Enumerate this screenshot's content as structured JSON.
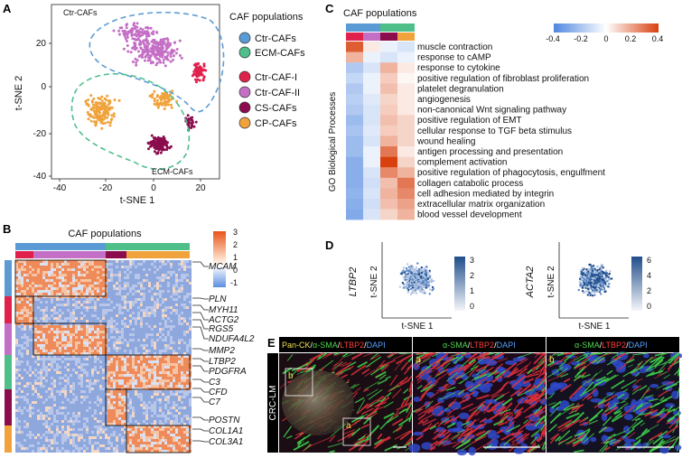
{
  "panels": {
    "a": {
      "label": "A",
      "annot_top": "Ctr-CAFs",
      "annot_bottom": "ECM-CAFs",
      "xlabel": "t-SNE 1",
      "ylabel": "t-SNE 2",
      "xticks": [
        "-40",
        "-20",
        "0",
        "20"
      ],
      "yticks": [
        "20",
        "0",
        "-20",
        "-40"
      ],
      "legend_title": "CAF populations",
      "legend": [
        {
          "label": "Ctr-CAFs",
          "color": "#5b9bd5"
        },
        {
          "label": "ECM-CAFs",
          "color": "#4fbf8a"
        },
        {
          "label": "Ctr-CAF-I",
          "color": "#e0214b"
        },
        {
          "label": "Ctr-CAF-II",
          "color": "#c46fc6"
        },
        {
          "label": "CS-CAFs",
          "color": "#8b0d4d"
        },
        {
          "label": "CP-CAFs",
          "color": "#f0a33c"
        }
      ]
    },
    "b": {
      "label": "B",
      "title": "CAF populations",
      "colorbar_ticks": [
        "3",
        "2",
        "1",
        "0",
        "-1"
      ],
      "genes": [
        "MCAM",
        "PLN",
        "MYH11",
        "ACTG2",
        "RGS5",
        "NDUFA4L2",
        "MMP2",
        "LTBP2",
        "PDGFRA",
        "C3",
        "CFD",
        "C7",
        "POSTN",
        "COL1A1",
        "COL3A1"
      ]
    },
    "c": {
      "label": "C",
      "title": "CAF populations",
      "ylabel": "GO Biological Processes",
      "colorbar_ticks": [
        "-0.4",
        "-0.2",
        "0",
        "0.2",
        "0.4"
      ],
      "terms": [
        "muscle contraction",
        "response to cAMP",
        "response to cytokine",
        "positive regulation of fibroblast proliferation",
        "platelet degranulation",
        "angiogenesis",
        "non-canonical Wnt signaling pathway",
        "positive regulation of EMT",
        "cellular response to TGF beta stimulus",
        "wound healing",
        "antigen processing and presentation",
        "complement activation",
        "positive regulation of phagocytosis, engulfment",
        "collagen catabolic process",
        "cell adhesion mediated by integrin",
        "extracellular matrix organization",
        "blood vessel development"
      ],
      "columns": [
        "Ctr-CAF-I",
        "Ctr-CAF-II",
        "CS-CAFs",
        "CP-CAFs"
      ]
    },
    "d": {
      "label": "D",
      "plots": [
        {
          "gene": "LTBP2",
          "xlabel": "t-SNE 1",
          "ylabel": "t-SNE 2",
          "colorbar_ticks": [
            "3",
            "2",
            "1",
            "0"
          ]
        },
        {
          "gene": "ACTA2",
          "xlabel": "t-SNE 1",
          "ylabel": "t-SNE 2",
          "colorbar_ticks": [
            "6",
            "4",
            "2",
            "0"
          ]
        }
      ]
    },
    "e": {
      "label": "E",
      "side_label": "CRC-LM",
      "inset_a": "a",
      "inset_b": "b",
      "headers": [
        [
          {
            "text": "Pan-CK",
            "color": "#f2e14c"
          },
          {
            "text": "/",
            "color": "#ffffff"
          },
          {
            "text": "α-SMA",
            "color": "#4fd64f"
          },
          {
            "text": "/",
            "color": "#ffffff"
          },
          {
            "text": "LTBP2",
            "color": "#ff3b3b"
          },
          {
            "text": "/",
            "color": "#ffffff"
          },
          {
            "text": "DAPI",
            "color": "#5aa0ff"
          }
        ],
        [
          {
            "text": "α-SMA",
            "color": "#4fd64f"
          },
          {
            "text": "/",
            "color": "#ffffff"
          },
          {
            "text": "LTBP2",
            "color": "#ff3b3b"
          },
          {
            "text": "/",
            "color": "#ffffff"
          },
          {
            "text": "DAPI",
            "color": "#5aa0ff"
          }
        ],
        [
          {
            "text": "α-SMA",
            "color": "#4fd64f"
          },
          {
            "text": "/",
            "color": "#ffffff"
          },
          {
            "text": "LTBP2",
            "color": "#ff3b3b"
          },
          {
            "text": "/",
            "color": "#ffffff"
          },
          {
            "text": "DAPI",
            "color": "#5aa0ff"
          }
        ]
      ],
      "sub_labels": [
        "a",
        "b"
      ]
    }
  }
}
